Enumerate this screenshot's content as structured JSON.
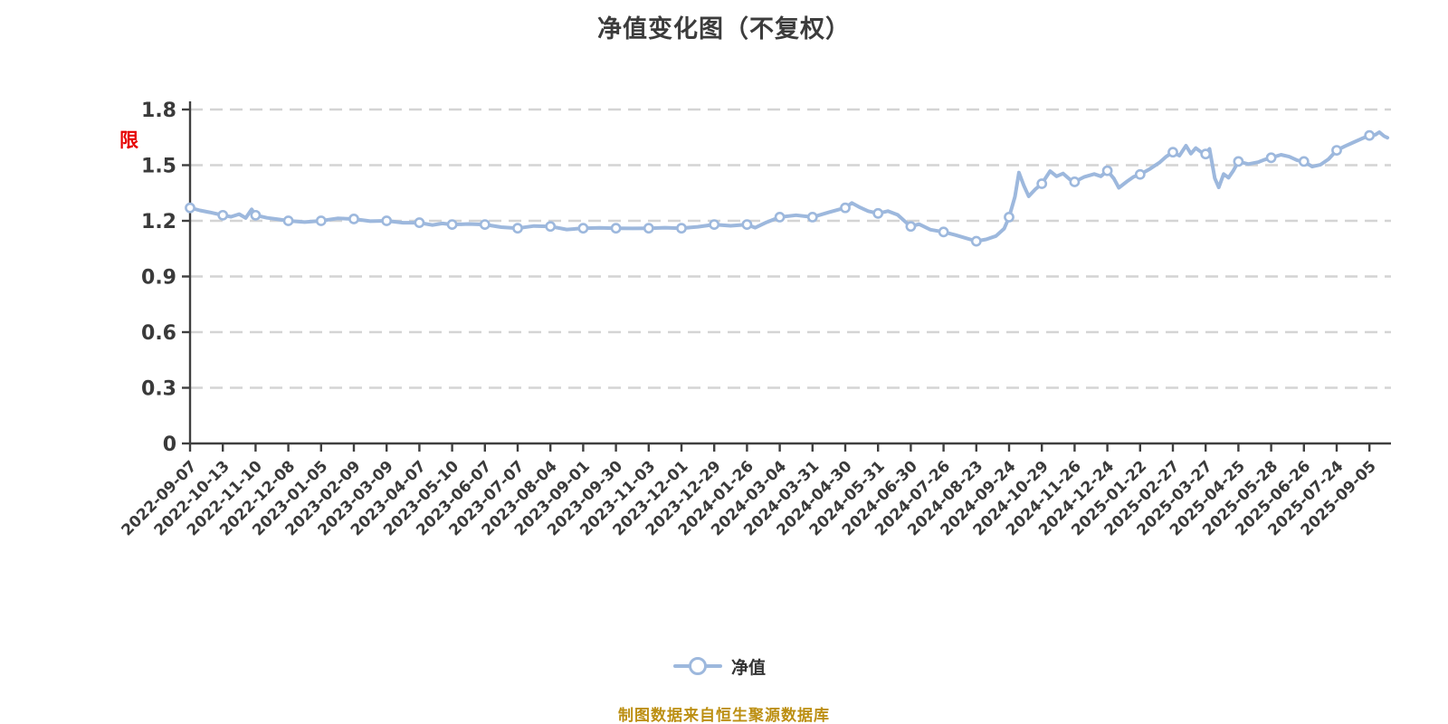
{
  "title": "净值变化图（不复权）",
  "red_label": "限",
  "legend": {
    "label": "净值",
    "marker": "circle-on-line"
  },
  "footer": {
    "source_note": "制图数据来自恒生聚源数据库"
  },
  "colors": {
    "title_text": "#3c3c3c",
    "axis": "#3f3f3f",
    "tick_text": "#3a3a3a",
    "grid": "#d4d4d4",
    "line": "#9db8dd",
    "marker_fill": "#ffffff",
    "marker_stroke": "#9db8dd",
    "red_label": "#e60000",
    "footer_text": "#bc8f12",
    "legend_text": "#333333"
  },
  "chart_data": {
    "type": "line",
    "title": "净值变化图（不复权）",
    "series_name": "净值",
    "xlabel": "",
    "ylabel": "",
    "ylim": [
      0,
      1.8
    ],
    "y_ticks": [
      0,
      0.3,
      0.6,
      0.9,
      1.2,
      1.5,
      1.8
    ],
    "grid": "horizontal-dashed",
    "legend_position": "bottom-center",
    "x_tick_labels": [
      "2022-09-07",
      "2022-10-13",
      "2022-11-10",
      "2022-12-08",
      "2023-01-05",
      "2023-02-09",
      "2023-03-09",
      "2023-04-07",
      "2023-05-10",
      "2023-06-07",
      "2023-07-07",
      "2023-08-04",
      "2023-09-01",
      "2023-09-30",
      "2023-11-03",
      "2023-12-01",
      "2023-12-29",
      "2024-01-26",
      "2024-03-04",
      "2024-03-31",
      "2024-04-30",
      "2024-05-31",
      "2024-06-30",
      "2024-07-26",
      "2024-08-23",
      "2024-09-24",
      "2024-10-29",
      "2024-11-26",
      "2024-12-24",
      "2025-01-22",
      "2025-02-27",
      "2025-03-27",
      "2025-04-25",
      "2025-05-28",
      "2025-06-26",
      "2025-07-24",
      "2025-09-05"
    ],
    "points": [
      {
        "date": "2022-09-07",
        "value": 1.27
      },
      {
        "date": "2022-10-13",
        "value": 1.23
      },
      {
        "date": "2022-11-10",
        "value": 1.23
      },
      {
        "date": "2022-12-08",
        "value": 1.2
      },
      {
        "date": "2023-01-05",
        "value": 1.2
      },
      {
        "date": "2023-02-09",
        "value": 1.21
      },
      {
        "date": "2023-03-09",
        "value": 1.2
      },
      {
        "date": "2023-04-07",
        "value": 1.19
      },
      {
        "date": "2023-05-10",
        "value": 1.18
      },
      {
        "date": "2023-06-07",
        "value": 1.18
      },
      {
        "date": "2023-07-07",
        "value": 1.16
      },
      {
        "date": "2023-08-04",
        "value": 1.17
      },
      {
        "date": "2023-09-01",
        "value": 1.16
      },
      {
        "date": "2023-09-30",
        "value": 1.16
      },
      {
        "date": "2023-11-03",
        "value": 1.16
      },
      {
        "date": "2023-12-01",
        "value": 1.16
      },
      {
        "date": "2023-12-29",
        "value": 1.18
      },
      {
        "date": "2024-01-26",
        "value": 1.18
      },
      {
        "date": "2024-03-04",
        "value": 1.22
      },
      {
        "date": "2024-03-31",
        "value": 1.22
      },
      {
        "date": "2024-04-30",
        "value": 1.27
      },
      {
        "date": "2024-05-31",
        "value": 1.24
      },
      {
        "date": "2024-06-30",
        "value": 1.17
      },
      {
        "date": "2024-07-26",
        "value": 1.14
      },
      {
        "date": "2024-08-23",
        "value": 1.09
      },
      {
        "date": "2024-09-24",
        "value": 1.22
      },
      {
        "date": "2024-10-29",
        "value": 1.4
      },
      {
        "date": "2024-11-26",
        "value": 1.41
      },
      {
        "date": "2024-12-24",
        "value": 1.47
      },
      {
        "date": "2025-01-22",
        "value": 1.45
      },
      {
        "date": "2025-02-27",
        "value": 1.57
      },
      {
        "date": "2025-03-27",
        "value": 1.56
      },
      {
        "date": "2025-04-25",
        "value": 1.52
      },
      {
        "date": "2025-05-28",
        "value": 1.54
      },
      {
        "date": "2025-06-26",
        "value": 1.52
      },
      {
        "date": "2025-07-24",
        "value": 1.58
      },
      {
        "date": "2025-09-05",
        "value": 1.66
      }
    ],
    "final_value": 1.65,
    "path": [
      [
        0,
        1.27
      ],
      [
        0.3,
        1.256
      ],
      [
        0.6,
        1.246
      ],
      [
        1,
        1.23
      ],
      [
        1.25,
        1.222
      ],
      [
        1.5,
        1.236
      ],
      [
        1.7,
        1.215
      ],
      [
        1.88,
        1.262
      ],
      [
        2,
        1.23
      ],
      [
        2.35,
        1.216
      ],
      [
        2.7,
        1.208
      ],
      [
        3,
        1.2
      ],
      [
        3.5,
        1.193
      ],
      [
        4,
        1.2
      ],
      [
        4.5,
        1.213
      ],
      [
        5,
        1.21
      ],
      [
        5.5,
        1.198
      ],
      [
        6,
        1.2
      ],
      [
        6.5,
        1.19
      ],
      [
        7,
        1.19
      ],
      [
        7.4,
        1.177
      ],
      [
        7.7,
        1.186
      ],
      [
        8,
        1.18
      ],
      [
        8.5,
        1.183
      ],
      [
        9,
        1.18
      ],
      [
        9.5,
        1.166
      ],
      [
        10,
        1.16
      ],
      [
        10.5,
        1.172
      ],
      [
        11,
        1.17
      ],
      [
        11.5,
        1.153
      ],
      [
        12,
        1.16
      ],
      [
        12.5,
        1.162
      ],
      [
        13,
        1.16
      ],
      [
        13.5,
        1.159
      ],
      [
        14,
        1.16
      ],
      [
        14.5,
        1.163
      ],
      [
        15,
        1.16
      ],
      [
        15.5,
        1.168
      ],
      [
        16,
        1.18
      ],
      [
        16.5,
        1.173
      ],
      [
        17,
        1.18
      ],
      [
        17.25,
        1.163
      ],
      [
        17.6,
        1.192
      ],
      [
        18,
        1.22
      ],
      [
        18.5,
        1.23
      ],
      [
        19,
        1.22
      ],
      [
        19.5,
        1.246
      ],
      [
        20,
        1.27
      ],
      [
        20.2,
        1.296
      ],
      [
        20.45,
        1.272
      ],
      [
        20.7,
        1.252
      ],
      [
        21,
        1.24
      ],
      [
        21.3,
        1.252
      ],
      [
        21.6,
        1.232
      ],
      [
        21.8,
        1.2
      ],
      [
        22,
        1.17
      ],
      [
        22.25,
        1.182
      ],
      [
        22.6,
        1.152
      ],
      [
        23,
        1.14
      ],
      [
        23.35,
        1.124
      ],
      [
        23.7,
        1.106
      ],
      [
        24,
        1.09
      ],
      [
        24.3,
        1.1
      ],
      [
        24.6,
        1.118
      ],
      [
        24.85,
        1.158
      ],
      [
        25,
        1.22
      ],
      [
        25.18,
        1.33
      ],
      [
        25.3,
        1.46
      ],
      [
        25.45,
        1.39
      ],
      [
        25.6,
        1.332
      ],
      [
        25.8,
        1.37
      ],
      [
        26,
        1.4
      ],
      [
        26.25,
        1.468
      ],
      [
        26.45,
        1.44
      ],
      [
        26.65,
        1.455
      ],
      [
        26.85,
        1.424
      ],
      [
        27,
        1.41
      ],
      [
        27.3,
        1.437
      ],
      [
        27.6,
        1.452
      ],
      [
        27.8,
        1.44
      ],
      [
        28,
        1.47
      ],
      [
        28.2,
        1.428
      ],
      [
        28.35,
        1.378
      ],
      [
        28.6,
        1.412
      ],
      [
        28.8,
        1.437
      ],
      [
        29,
        1.45
      ],
      [
        29.3,
        1.48
      ],
      [
        29.6,
        1.515
      ],
      [
        29.8,
        1.547
      ],
      [
        30,
        1.57
      ],
      [
        30.2,
        1.551
      ],
      [
        30.4,
        1.605
      ],
      [
        30.55,
        1.562
      ],
      [
        30.7,
        1.592
      ],
      [
        30.85,
        1.572
      ],
      [
        31,
        1.56
      ],
      [
        31.12,
        1.588
      ],
      [
        31.28,
        1.43
      ],
      [
        31.4,
        1.38
      ],
      [
        31.55,
        1.452
      ],
      [
        31.7,
        1.432
      ],
      [
        31.85,
        1.472
      ],
      [
        32,
        1.52
      ],
      [
        32.3,
        1.506
      ],
      [
        32.6,
        1.516
      ],
      [
        32.8,
        1.53
      ],
      [
        33,
        1.54
      ],
      [
        33.3,
        1.556
      ],
      [
        33.55,
        1.546
      ],
      [
        33.8,
        1.526
      ],
      [
        34,
        1.52
      ],
      [
        34.25,
        1.492
      ],
      [
        34.5,
        1.502
      ],
      [
        34.75,
        1.532
      ],
      [
        35,
        1.58
      ],
      [
        35.25,
        1.602
      ],
      [
        35.5,
        1.622
      ],
      [
        35.75,
        1.642
      ],
      [
        36,
        1.66
      ],
      [
        36.18,
        1.664
      ],
      [
        36.3,
        1.678
      ],
      [
        36.45,
        1.656
      ],
      [
        36.55,
        1.648
      ]
    ]
  }
}
